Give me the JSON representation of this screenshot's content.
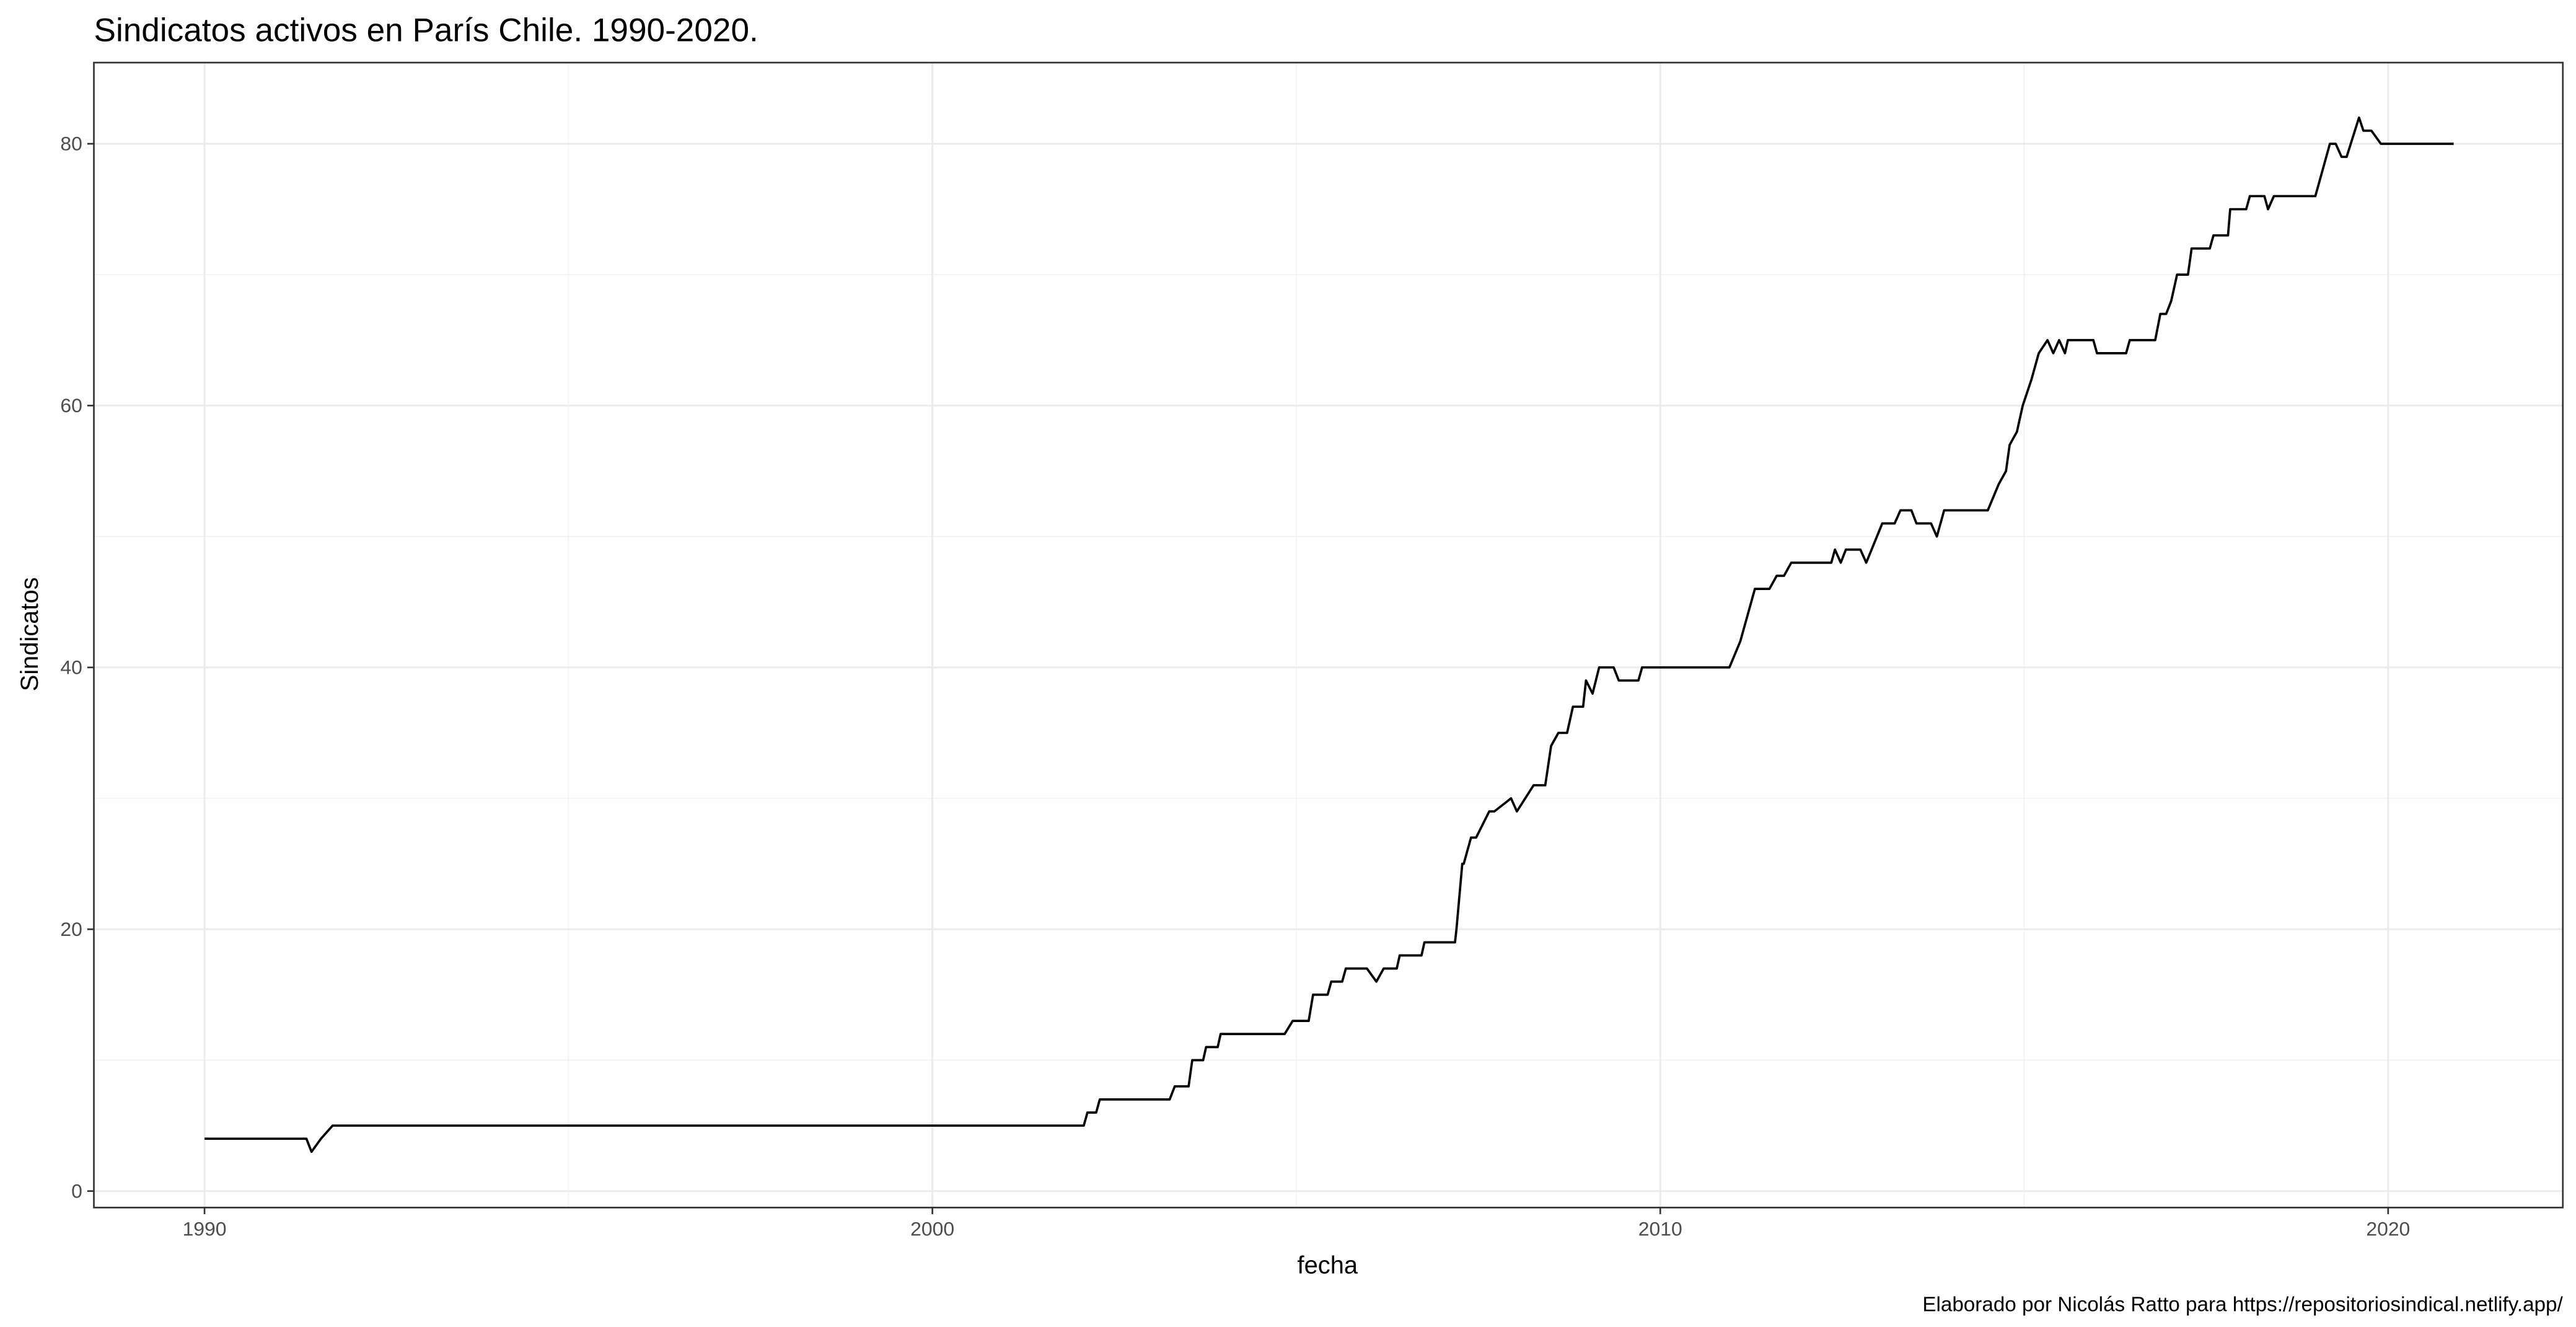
{
  "chart_data": {
    "type": "line",
    "title": "Sindicatos activos en París Chile. 1990-2020.",
    "x_label": "fecha",
    "y_label": "Sindicatos",
    "caption": "Elaborado por Nicolás Ratto para https://repositoriosindical.netlify.app/",
    "xlim": [
      1988.48,
      2022.4
    ],
    "ylim": [
      -1.26,
      86.2
    ],
    "xticks": [
      1990,
      2000,
      2010,
      2020
    ],
    "yticks": [
      0,
      20,
      40,
      60,
      80
    ],
    "x_minor_grid": [
      1995,
      2005,
      2015
    ],
    "y_minor_grid": [
      10,
      30,
      50,
      70
    ],
    "grid": true,
    "series": [
      {
        "name": "Sindicatos",
        "color": "#000000",
        "x": [
          1990.0,
          1991.4,
          1991.47,
          1991.6,
          1991.76,
          2002.08,
          2002.13,
          2002.25,
          2002.3,
          2003.26,
          2003.33,
          2003.52,
          2003.57,
          2003.72,
          2003.76,
          2003.92,
          2003.96,
          2004.84,
          2004.95,
          2005.17,
          2005.23,
          2005.43,
          2005.48,
          2005.63,
          2005.68,
          2005.97,
          2006.1,
          2006.2,
          2006.38,
          2006.42,
          2006.72,
          2006.76,
          2007.18,
          2007.2,
          2007.28,
          2007.3,
          2007.4,
          2007.47,
          2007.65,
          2007.72,
          2007.95,
          2008.03,
          2008.26,
          2008.42,
          2008.5,
          2008.6,
          2008.72,
          2008.8,
          2008.94,
          2008.98,
          2009.07,
          2009.16,
          2009.36,
          2009.43,
          2009.7,
          2009.75,
          2010.95,
          2011.1,
          2011.3,
          2011.5,
          2011.6,
          2011.7,
          2011.8,
          2012.35,
          2012.4,
          2012.48,
          2012.55,
          2012.75,
          2012.83,
          2013.05,
          2013.22,
          2013.3,
          2013.45,
          2013.52,
          2013.72,
          2013.8,
          2013.9,
          2014.5,
          2014.65,
          2014.75,
          2014.8,
          2014.9,
          2014.98,
          2015.1,
          2015.2,
          2015.32,
          2015.4,
          2015.48,
          2015.56,
          2015.6,
          2015.95,
          2016.0,
          2016.4,
          2016.45,
          2016.8,
          2016.87,
          2016.95,
          2017.02,
          2017.1,
          2017.25,
          2017.3,
          2017.55,
          2017.6,
          2017.8,
          2017.83,
          2018.05,
          2018.1,
          2018.3,
          2018.35,
          2018.43,
          2019.0,
          2019.05,
          2019.2,
          2019.28,
          2019.36,
          2019.43,
          2019.6,
          2019.66,
          2019.77,
          2019.9,
          2020.0,
          2020.9
        ],
        "values": [
          4,
          4,
          3,
          4,
          5,
          5,
          6,
          6,
          7,
          7,
          8,
          8,
          10,
          10,
          11,
          11,
          12,
          12,
          13,
          13,
          15,
          15,
          16,
          16,
          17,
          17,
          16,
          17,
          17,
          18,
          18,
          19,
          19,
          20,
          25,
          25,
          27,
          27,
          29,
          29,
          30,
          29,
          31,
          31,
          34,
          35,
          35,
          37,
          37,
          39,
          38,
          40,
          40,
          39,
          39,
          40,
          40,
          42,
          46,
          46,
          47,
          47,
          48,
          48,
          49,
          48,
          49,
          49,
          48,
          51,
          51,
          52,
          52,
          51,
          51,
          50,
          52,
          52,
          54,
          55,
          57,
          58,
          60,
          62,
          64,
          65,
          64,
          65,
          64,
          65,
          65,
          64,
          64,
          65,
          65,
          67,
          67,
          68,
          70,
          70,
          72,
          72,
          73,
          73,
          75,
          75,
          76,
          76,
          75,
          76,
          76,
          77,
          80,
          80,
          79,
          79,
          82,
          81,
          81,
          80,
          80,
          80
        ]
      }
    ]
  }
}
